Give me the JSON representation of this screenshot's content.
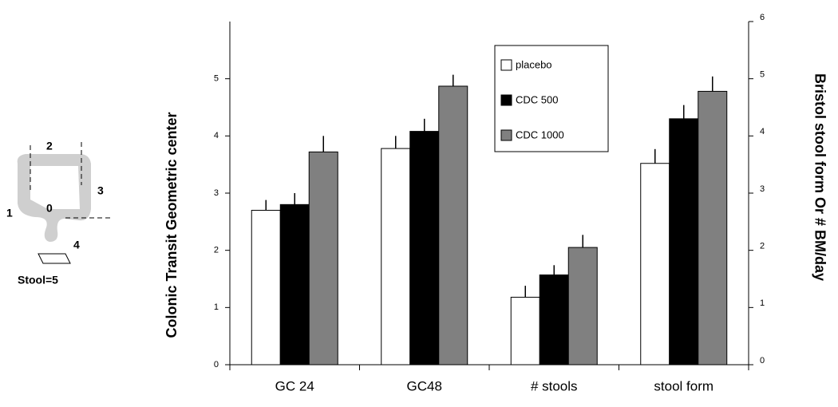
{
  "chart_data": {
    "type": "bar",
    "y_label": "Colonic Transit  Geometric center",
    "y2_label": "Bristol stool form Or # BM/day",
    "categories": [
      "GC 24",
      "GC48",
      "# stools",
      "stool form"
    ],
    "series": [
      {
        "name": "placebo",
        "color": "#ffffff",
        "values": [
          2.7,
          3.78,
          1.18,
          3.52
        ],
        "errors": [
          0.18,
          0.22,
          0.2,
          0.25
        ]
      },
      {
        "name": "CDC 500",
        "color": "#000000",
        "values": [
          2.8,
          4.08,
          1.57,
          4.3
        ],
        "errors": [
          0.2,
          0.22,
          0.17,
          0.24
        ]
      },
      {
        "name": "CDC 1000",
        "color": "#808080",
        "values": [
          3.72,
          4.87,
          2.05,
          4.78
        ],
        "errors": [
          0.28,
          0.2,
          0.22,
          0.26
        ]
      }
    ],
    "ylim": [
      0,
      6
    ],
    "yticks": [
      0,
      1,
      2,
      3,
      4,
      5
    ],
    "y2lim": [
      0,
      6
    ],
    "y2ticks": [
      0,
      1,
      2,
      3,
      4,
      5,
      6
    ]
  },
  "diagram_labels": {
    "segment_1": "1",
    "segment_2": "2",
    "segment_3": "3",
    "segment_0": "0",
    "segment_4": "4",
    "stool": "Stool=5"
  }
}
